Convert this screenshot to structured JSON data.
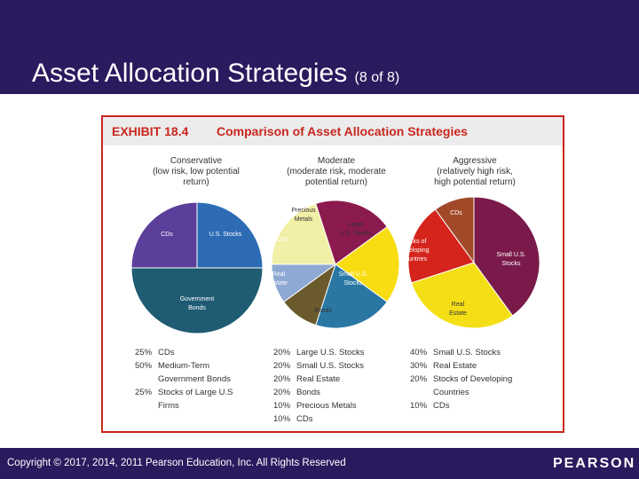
{
  "slide": {
    "title": "Asset Allocation Strategies",
    "subtitle": "(8 of 8)"
  },
  "exhibit": {
    "number": "EXHIBIT 18.4",
    "title": "Comparison of Asset Allocation Strategies"
  },
  "chart_data": [
    {
      "type": "pie",
      "title_lines": [
        "Conservative",
        "(low risk, low potential",
        "return)"
      ],
      "slices": [
        {
          "chart_label": [
            "U.S. Stocks"
          ],
          "legend_pct": "25%",
          "legend_lines": [
            "Stocks of Large U.S",
            "Firms"
          ],
          "value": 25,
          "color": "#2d6cb5"
        },
        {
          "chart_label": [
            "Government",
            "Bonds"
          ],
          "legend_pct": "50%",
          "legend_lines": [
            "Medium-Term",
            "Government Bonds"
          ],
          "value": 50,
          "color": "#1f5b73"
        },
        {
          "chart_label": [
            "CDs"
          ],
          "legend_pct": "25%",
          "legend_lines": [
            "CDs"
          ],
          "value": 25,
          "color": "#5c3f9a"
        }
      ],
      "legend_order": [
        2,
        1,
        0
      ]
    },
    {
      "type": "pie",
      "title_lines": [
        "Moderate",
        "(moderate risk, moderate",
        "potential return)"
      ],
      "slices": [
        {
          "chart_label": [
            "Large",
            "U.S. Stocks"
          ],
          "legend_pct": "20%",
          "legend_lines": [
            "Large U.S. Stocks"
          ],
          "value": 20,
          "color": "#f2efa6"
        },
        {
          "chart_label": [
            "Small U.S.",
            "Stocks"
          ],
          "legend_pct": "20%",
          "legend_lines": [
            "Small U.S. Stocks"
          ],
          "value": 20,
          "color": "#8b1a4e"
        },
        {
          "chart_label": [
            "Bonds"
          ],
          "legend_pct": "20%",
          "legend_lines": [
            "Bonds"
          ],
          "value": 20,
          "color": "#f7dd12"
        },
        {
          "chart_label": [
            "Real",
            "Estate"
          ],
          "legend_pct": "20%",
          "legend_lines": [
            "Real Estate"
          ],
          "value": 20,
          "color": "#2a77a4"
        },
        {
          "chart_label": [
            "CDs"
          ],
          "legend_pct": "10%",
          "legend_lines": [
            "CDs"
          ],
          "value": 10,
          "color": "#6b5a2c"
        },
        {
          "chart_label": [
            "Precious",
            "Metals"
          ],
          "legend_pct": "10%",
          "legend_lines": [
            "Precious Metals"
          ],
          "value": 10,
          "color": "#8ea9d3"
        }
      ],
      "legend_order": [
        0,
        1,
        3,
        2,
        5,
        4
      ]
    },
    {
      "type": "pie",
      "title_lines": [
        "Aggressive",
        "(relatively high risk,",
        "high potential return)"
      ],
      "slices": [
        {
          "chart_label": [
            "Small U.S.",
            "Stocks"
          ],
          "legend_pct": "40%",
          "legend_lines": [
            "Small U.S. Stocks"
          ],
          "value": 40,
          "color": "#7a1a4a"
        },
        {
          "chart_label": [
            "Real",
            "Estate"
          ],
          "legend_pct": "30%",
          "legend_lines": [
            "Real Estate"
          ],
          "value": 30,
          "color": "#f4df16"
        },
        {
          "chart_label": [
            "Stocks of",
            "Developing",
            "Countries"
          ],
          "legend_pct": "20%",
          "legend_lines": [
            "Stocks of Developing",
            "Countries"
          ],
          "value": 20,
          "color": "#d4241c"
        },
        {
          "chart_label": [
            "CDs"
          ],
          "legend_pct": "10%",
          "legend_lines": [
            "CDs"
          ],
          "value": 10,
          "color": "#a14a2a"
        }
      ],
      "legend_order": [
        0,
        1,
        2,
        3
      ]
    }
  ],
  "footer": {
    "copyright": "Copyright © 2017, 2014, 2011 Pearson Education, Inc. All Rights Reserved",
    "logo": "PEARSON"
  }
}
